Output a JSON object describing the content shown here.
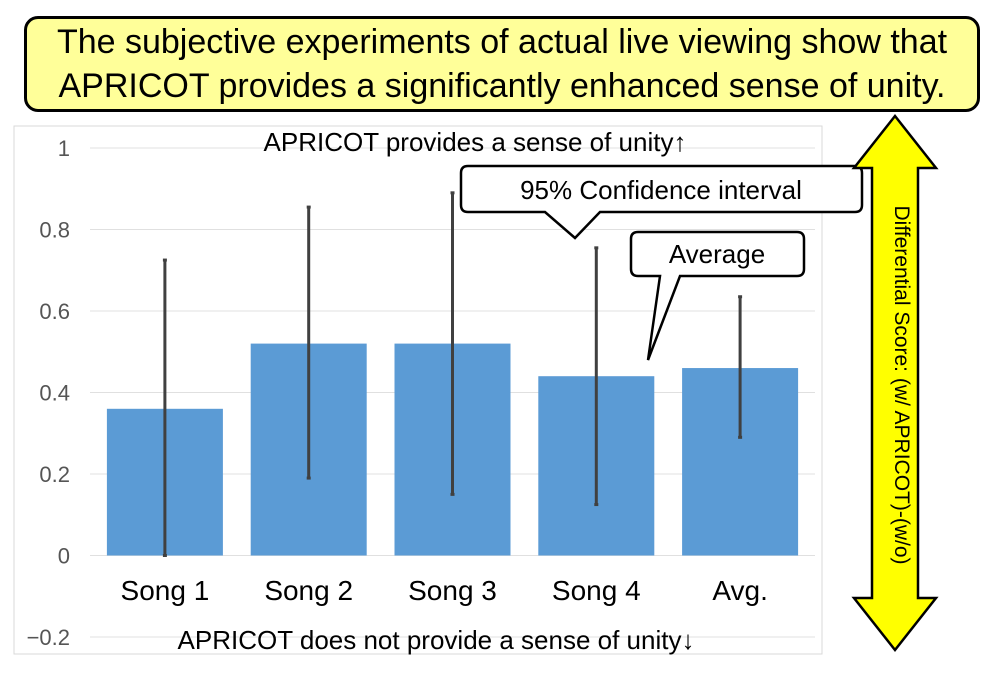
{
  "header": {
    "line1": "The subjective experiments of actual live viewing show that",
    "line2": "APRICOT provides a significantly enhanced  sense of unity."
  },
  "chart_data": {
    "type": "bar",
    "categories": [
      "Song 1",
      "Song 2",
      "Song 3",
      "Song 4",
      "Avg."
    ],
    "values": [
      0.36,
      0.52,
      0.52,
      0.44,
      0.46
    ],
    "error_low": [
      0.0,
      0.19,
      0.15,
      0.125,
      0.29
    ],
    "error_high": [
      0.725,
      0.855,
      0.89,
      0.755,
      0.635
    ],
    "ylim": [
      -0.2,
      1
    ],
    "yticks": [
      {
        "value": 1,
        "label": "1"
      },
      {
        "value": 0.8,
        "label": "0.8"
      },
      {
        "value": 0.6,
        "label": "0.6"
      },
      {
        "value": 0.4,
        "label": "0.4"
      },
      {
        "value": 0.2,
        "label": "0.2"
      },
      {
        "value": 0,
        "label": "0"
      },
      {
        "value": -0.2,
        "label": "−0.2"
      }
    ],
    "grid": true,
    "bar_color": "#5b9bd5",
    "error_color": "#404040",
    "top_annotation": "APRICOT provides a sense of unity↑",
    "bottom_annotation": "APRICOT does not provide a sense of unity↓",
    "ci_callout": "95% Confidence interval",
    "avg_callout": "Average",
    "ylabel": "Differential Score: (w/ APRICOT)-(w/o)"
  },
  "colors": {
    "title_fill": "#ffff99",
    "arrow_fill": "#ffff00"
  }
}
